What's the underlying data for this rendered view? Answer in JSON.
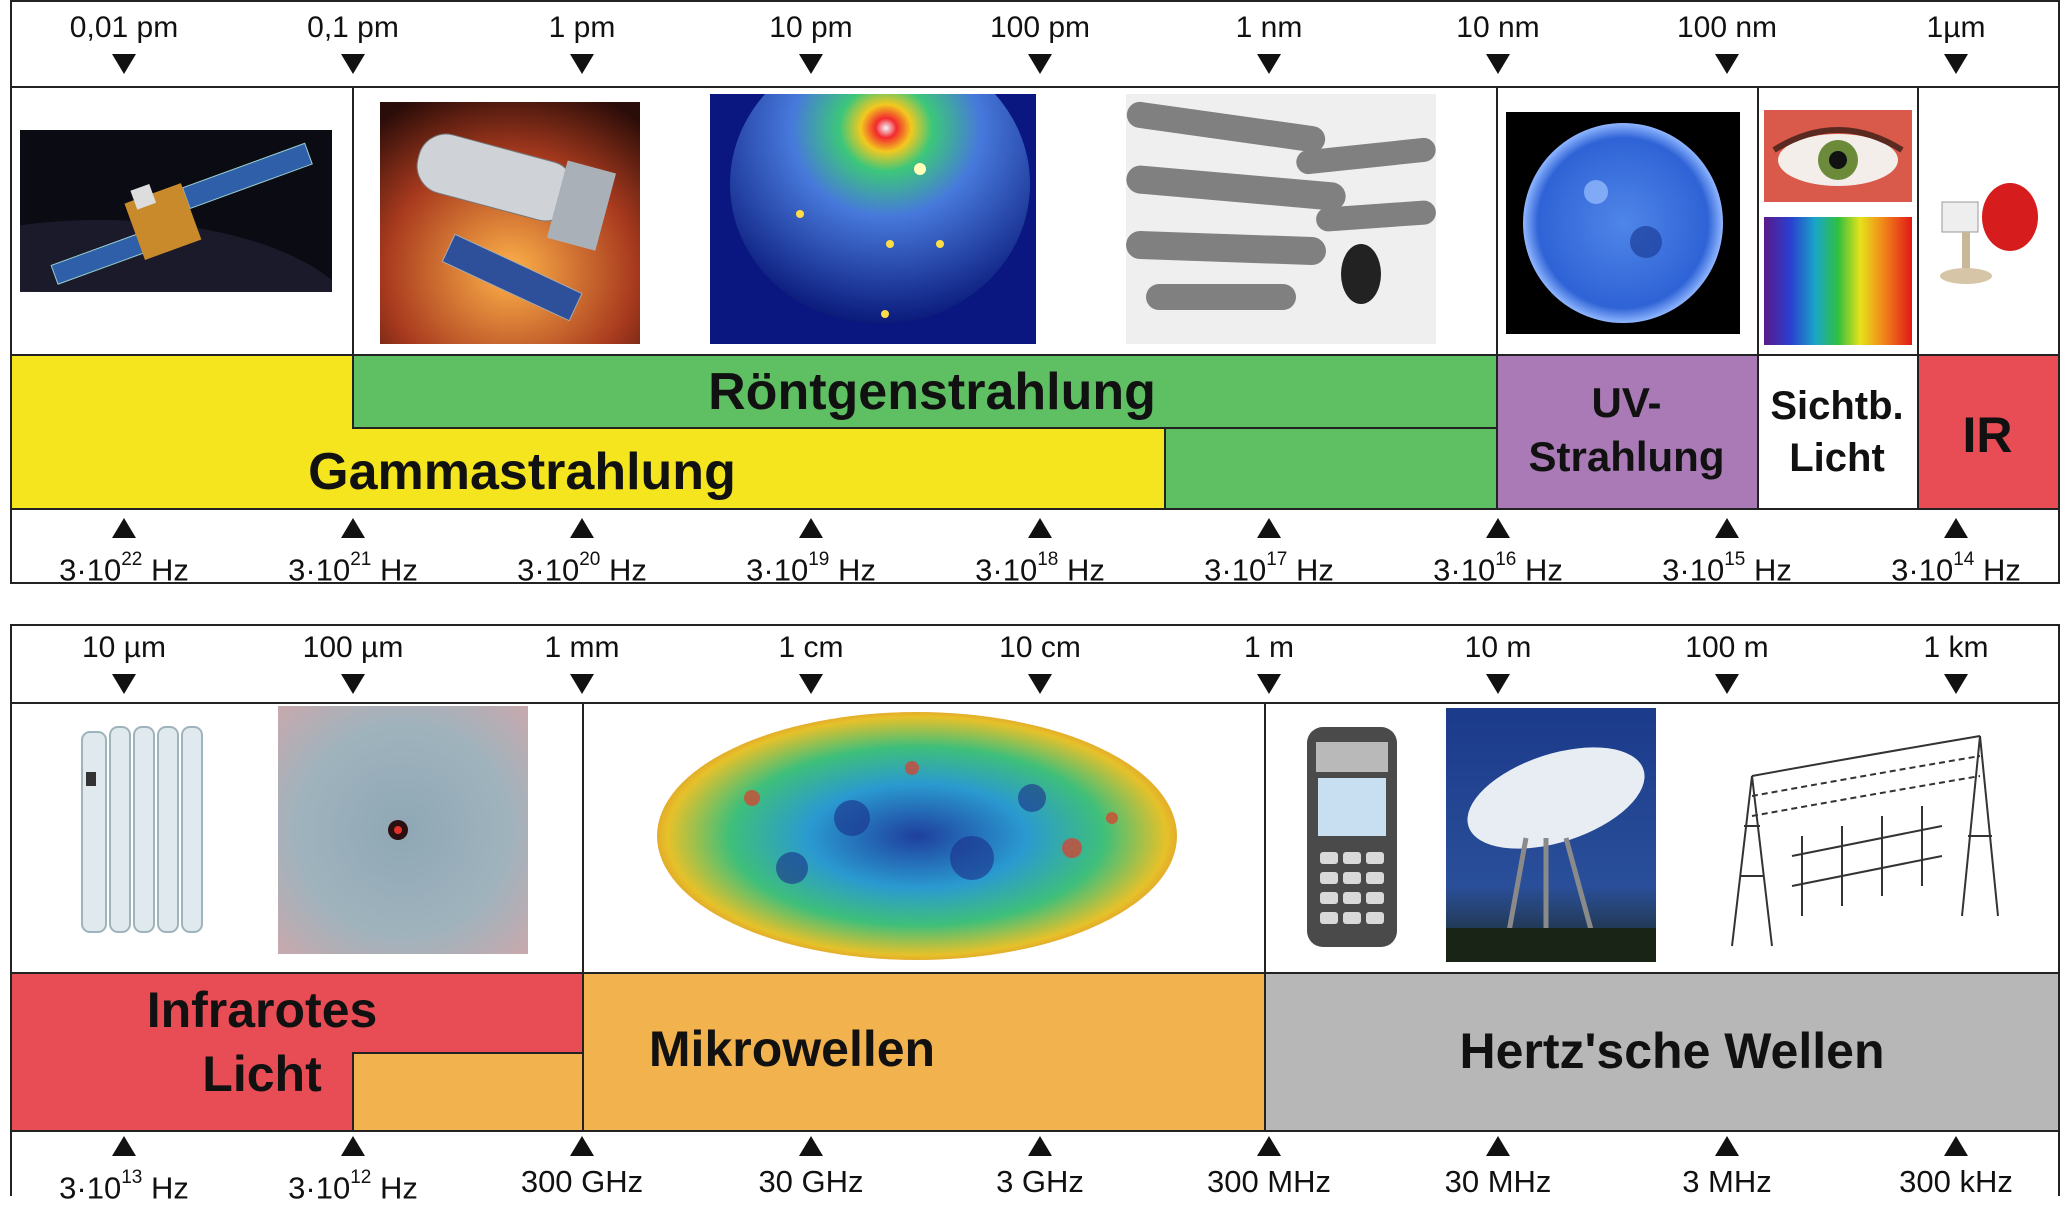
{
  "top_panel": {
    "wavelength_ticks": [
      "0,01 pm",
      "0,1 pm",
      "1 pm",
      "10 pm",
      "100 pm",
      "1 nm",
      "10 nm",
      "100 nm",
      "1µm"
    ],
    "frequency_ticks": [
      {
        "base": "3·10",
        "exp": "22",
        "unit": " Hz"
      },
      {
        "base": "3·10",
        "exp": "21",
        "unit": " Hz"
      },
      {
        "base": "3·10",
        "exp": "20",
        "unit": " Hz"
      },
      {
        "base": "3·10",
        "exp": "19",
        "unit": " Hz"
      },
      {
        "base": "3·10",
        "exp": "18",
        "unit": " Hz"
      },
      {
        "base": "3·10",
        "exp": "17",
        "unit": " Hz"
      },
      {
        "base": "3·10",
        "exp": "16",
        "unit": " Hz"
      },
      {
        "base": "3·10",
        "exp": "15",
        "unit": " Hz"
      },
      {
        "base": "3·10",
        "exp": "14",
        "unit": " Hz"
      }
    ],
    "bands": {
      "gamma": "Gammastrahlung",
      "xray": "Röntgenstrahlung",
      "uv_line1": "UV-",
      "uv_line2": "Strahlung",
      "visible_line1": "Sichtb.",
      "visible_line2": "Licht",
      "ir": "IR"
    }
  },
  "bottom_panel": {
    "wavelength_ticks": [
      "10 µm",
      "100 µm",
      "1 mm",
      "1 cm",
      "10 cm",
      "1 m",
      "10 m",
      "100 m",
      "1 km"
    ],
    "frequency_ticks": [
      {
        "base": "3·10",
        "exp": "13",
        "unit": " Hz"
      },
      {
        "base": "3·10",
        "exp": "12",
        "unit": " Hz"
      },
      {
        "base": "300 GHz",
        "exp": "",
        "unit": ""
      },
      {
        "base": "30 GHz",
        "exp": "",
        "unit": ""
      },
      {
        "base": "3 GHz",
        "exp": "",
        "unit": ""
      },
      {
        "base": "300 MHz",
        "exp": "",
        "unit": ""
      },
      {
        "base": "30 MHz",
        "exp": "",
        "unit": ""
      },
      {
        "base": "3 MHz",
        "exp": "",
        "unit": ""
      },
      {
        "base": "300 kHz",
        "exp": "",
        "unit": ""
      }
    ],
    "bands": {
      "infrared_line1": "Infrarotes",
      "infrared_line2": "Licht",
      "microwave": "Mikrowellen",
      "hertz": "Hertz'sche Wellen"
    }
  },
  "colors": {
    "gamma": "#f5e51e",
    "xray": "#5fbf63",
    "uv": "#a97ab5",
    "visible": "#ffffff",
    "ir": "#e84c55",
    "infrared": "#e84c55",
    "microwave": "#f2b24e",
    "hertz": "#b7b7b7"
  }
}
